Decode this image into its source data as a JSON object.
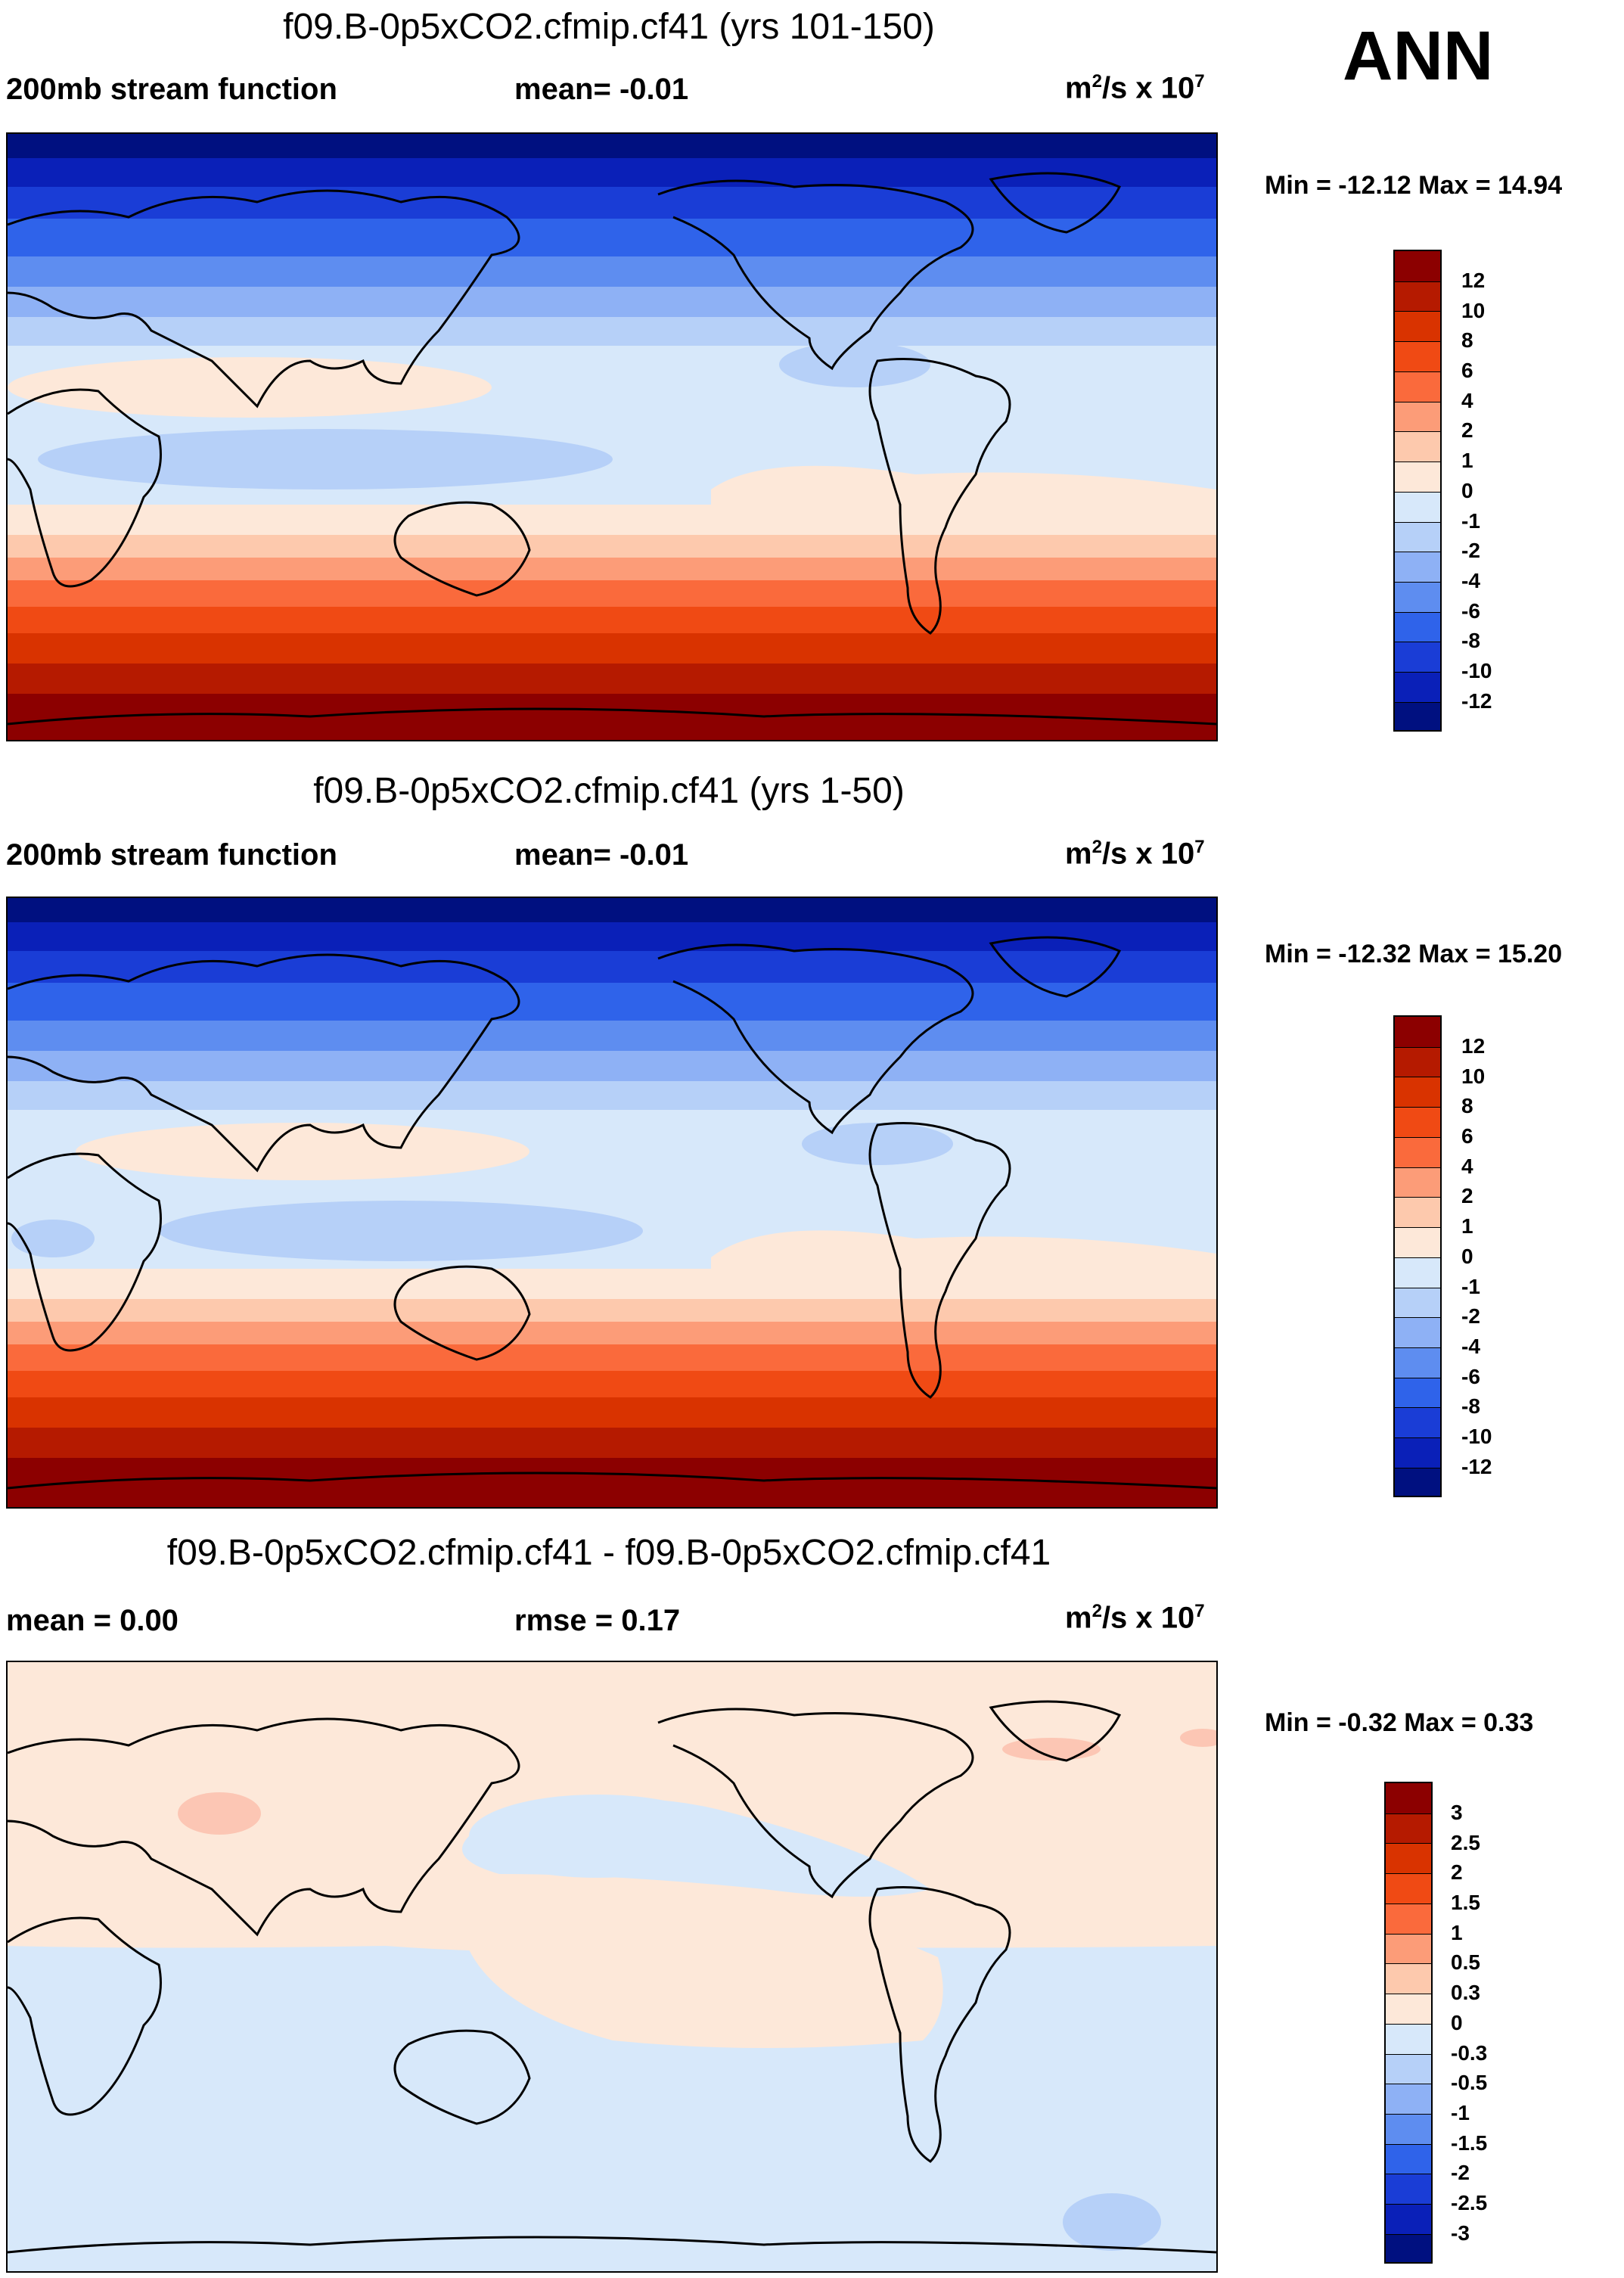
{
  "season": "ANN",
  "units_main": "m",
  "units_sup1": "2",
  "units_mid": "/s x 10",
  "units_sup2": "7",
  "panels": [
    {
      "title": "f09.B-0p5xCO2.cfmip.cf41 (yrs 101-150)",
      "left_label": "200mb stream function",
      "mid_label": "mean=  -0.01",
      "min_max": "Min = -12.12 Max =  14.94"
    },
    {
      "title": "f09.B-0p5xCO2.cfmip.cf41 (yrs 1-50)",
      "left_label": "200mb stream function",
      "mid_label": "mean=  -0.01",
      "min_max": "Min = -12.32 Max =  15.20"
    },
    {
      "title": "f09.B-0p5xCO2.cfmip.cf41 - f09.B-0p5xCO2.cfmip.cf41",
      "left_label": "mean =   0.00",
      "mid_label": "rmse =   0.17",
      "min_max": "Min =  -0.32 Max =   0.33"
    }
  ],
  "chart_data": [
    {
      "type": "heatmap",
      "subtype": "filled-contour-map",
      "title": "f09.B-0p5xCO2.cfmip.cf41 (yrs 101-150)",
      "variable": "200mb stream function",
      "mean": -0.01,
      "min": -12.12,
      "max": 14.94,
      "units": "m2/s x 10^7",
      "contour_levels": [
        "12",
        "10",
        "8",
        "6",
        "4",
        "2",
        "1",
        "0",
        "-1",
        "-2",
        "-4",
        "-6",
        "-8",
        "-10",
        "-12"
      ],
      "colors": [
        "#8c0000",
        "#b51a00",
        "#d93300",
        "#f04a14",
        "#fa6a3c",
        "#fc9c78",
        "#fdc9ad",
        "#fde8d9",
        "#d7e8fa",
        "#b6d0f8",
        "#8eb1f5",
        "#5e8df0",
        "#2f63ea",
        "#1a3dd6",
        "#0a20b8",
        "#001080"
      ]
    },
    {
      "type": "heatmap",
      "subtype": "filled-contour-map",
      "title": "f09.B-0p5xCO2.cfmip.cf41 (yrs 1-50)",
      "variable": "200mb stream function",
      "mean": -0.01,
      "min": -12.32,
      "max": 15.2,
      "units": "m2/s x 10^7",
      "contour_levels": [
        "12",
        "10",
        "8",
        "6",
        "4",
        "2",
        "1",
        "0",
        "-1",
        "-2",
        "-4",
        "-6",
        "-8",
        "-10",
        "-12"
      ],
      "colors": [
        "#8c0000",
        "#b51a00",
        "#d93300",
        "#f04a14",
        "#fa6a3c",
        "#fc9c78",
        "#fdc9ad",
        "#fde8d9",
        "#d7e8fa",
        "#b6d0f8",
        "#8eb1f5",
        "#5e8df0",
        "#2f63ea",
        "#1a3dd6",
        "#0a20b8",
        "#001080"
      ]
    },
    {
      "type": "heatmap",
      "subtype": "filled-contour-map-difference",
      "title": "f09.B-0p5xCO2.cfmip.cf41 - f09.B-0p5xCO2.cfmip.cf41",
      "mean": 0.0,
      "rmse": 0.17,
      "min": -0.32,
      "max": 0.33,
      "units": "m2/s x 10^7",
      "contour_levels": [
        "3",
        "2.5",
        "2",
        "1.5",
        "1",
        "0.5",
        "0.3",
        "0",
        "-0.3",
        "-0.5",
        "-1",
        "-1.5",
        "-2",
        "-2.5",
        "-3"
      ],
      "colors": [
        "#8c0000",
        "#b51a00",
        "#d93300",
        "#f04a14",
        "#fa6a3c",
        "#fc9c78",
        "#fdc9ad",
        "#fde8d9",
        "#d7e8fa",
        "#b6d0f8",
        "#8eb1f5",
        "#5e8df0",
        "#2f63ea",
        "#1a3dd6",
        "#0a20b8",
        "#001080"
      ]
    }
  ]
}
